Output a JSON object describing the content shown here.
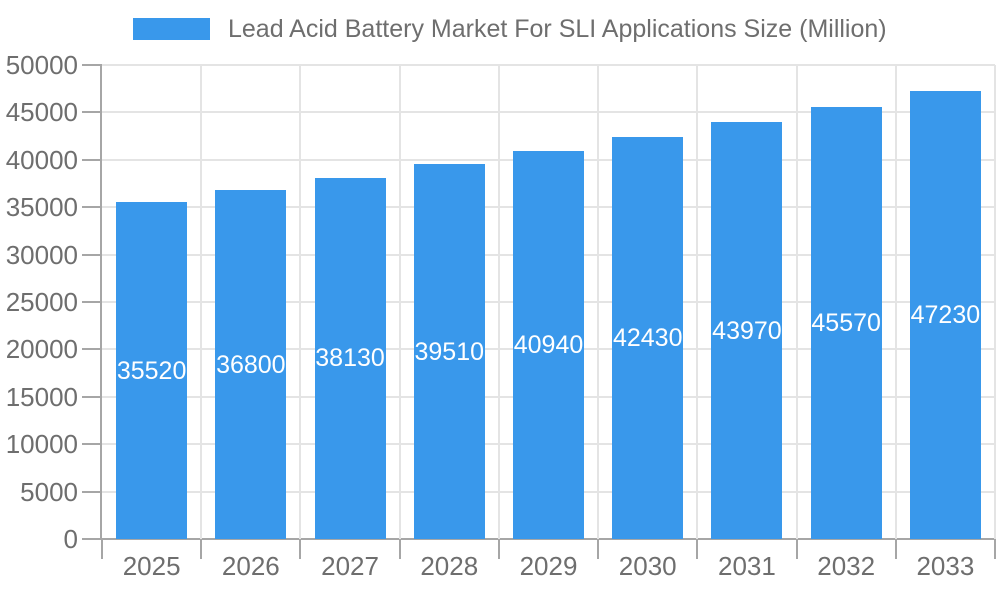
{
  "legend": {
    "position": "top",
    "series_label": "Lead Acid Battery Market For SLI Applications Size (Million)"
  },
  "chart_data": {
    "type": "bar",
    "title": "Lead Acid Battery Market For SLI Applications Size (Million)",
    "categories": [
      "2025",
      "2026",
      "2027",
      "2028",
      "2029",
      "2030",
      "2031",
      "2032",
      "2033"
    ],
    "values": [
      35520,
      36800,
      38130,
      39510,
      40940,
      42430,
      43970,
      45570,
      47230
    ],
    "value_labels": [
      "35520",
      "36800",
      "38130",
      "39510",
      "40940",
      "42430",
      "43970",
      "45570",
      "47230"
    ],
    "xlabel": "",
    "ylabel": "",
    "ylim": [
      0,
      50000
    ],
    "ytick_step": 5000,
    "ytick_labels": [
      "0",
      "5000",
      "10000",
      "15000",
      "20000",
      "25000",
      "30000",
      "35000",
      "40000",
      "45000",
      "50000"
    ],
    "grid": true,
    "legend_position": "top",
    "bar_label_position": "inside-center",
    "colors": {
      "bar": "#3998EB",
      "bar_value_label": "#FFFFFF",
      "axis_line": "#A6A6A6",
      "gridline": "#E4E4E4",
      "tick_label": "#6E6E6E",
      "legend_text": "#6E6E6E",
      "background": "#FFFFFF"
    }
  }
}
